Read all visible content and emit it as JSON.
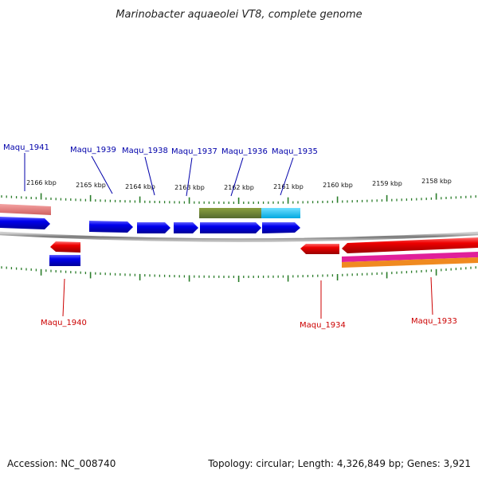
{
  "title": "Marinobacter aquaeolei VT8, complete genome",
  "footer": {
    "accession": "Accession: NC_008740",
    "topology": "Topology: circular; Length: 4,326,849 bp; Genes: 3,921"
  },
  "colors": {
    "forward": "#0000ee",
    "reverse": "#ee0000",
    "backbone": "#888888",
    "ticks": "#2a7d2a",
    "label_forward": "#0000aa",
    "label_reverse": "#cc0000"
  },
  "kbp_ticks": [
    "2166 kbp",
    "2165 kbp",
    "2164 kbp",
    "2163 kbp",
    "2162 kbp",
    "2161 kbp",
    "2160 kbp",
    "2159 kbp",
    "2158 kbp"
  ],
  "genes_forward": [
    {
      "label": "Maqu_1941"
    },
    {
      "label": "Maqu_1939"
    },
    {
      "label": "Maqu_1938"
    },
    {
      "label": "Maqu_1937"
    },
    {
      "label": "Maqu_1936"
    },
    {
      "label": "Maqu_1935"
    }
  ],
  "genes_reverse": [
    {
      "label": "Maqu_1940"
    },
    {
      "label": "Maqu_1934"
    },
    {
      "label": "Maqu_1933"
    }
  ]
}
